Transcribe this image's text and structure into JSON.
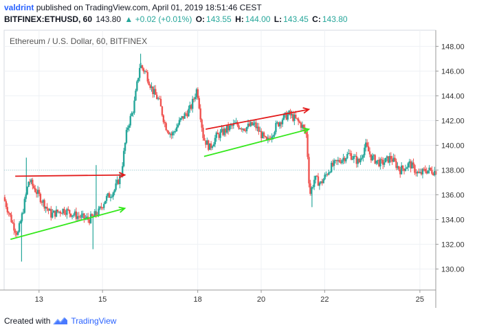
{
  "header": {
    "user": "valdrint",
    "published": "published on TradingView.com, April 01, 2019 18:51:46 CEST",
    "symbol": "BITFINEX:ETHUSD, 60",
    "last": "143.80",
    "change": "▲ +0.02 (+0.01%)",
    "o_label": "O:",
    "o_val": "143.55",
    "h_label": "H:",
    "h_val": "144.00",
    "l_label": "L:",
    "l_val": "143.45",
    "c_label": "C:",
    "c_val": "143.80"
  },
  "footer": {
    "created": "Created with",
    "brand": "TradingView"
  },
  "colors": {
    "up": "#26a69a",
    "down": "#ef5350",
    "red_line": "#e31b1b",
    "green_line": "#33e81a",
    "grid": "#eef1f5",
    "axis": "#999999"
  },
  "chart_data": {
    "type": "candlestick",
    "title": "Ethereum / U.S. Dollar, 60, BITFINEX",
    "x_ticks": [
      "13",
      "15",
      "18",
      "20",
      "22",
      "25"
    ],
    "x_tick_days": [
      13,
      15,
      18,
      20,
      22,
      25
    ],
    "y_ticks": [
      130.0,
      132.0,
      134.0,
      136.0,
      138.0,
      140.0,
      142.0,
      144.0,
      146.0,
      148.0
    ],
    "ylim": [
      128.3,
      149.3
    ],
    "xlim": [
      11.9,
      25.5
    ],
    "price_path": [
      [
        11.9,
        135.8
      ],
      [
        12.2,
        133.6
      ],
      [
        12.35,
        132.8
      ],
      [
        12.5,
        134.5
      ],
      [
        12.7,
        137.2
      ],
      [
        13.0,
        136.0
      ],
      [
        13.4,
        134.4
      ],
      [
        13.8,
        134.8
      ],
      [
        14.2,
        134.3
      ],
      [
        14.6,
        134.0
      ],
      [
        14.9,
        134.6
      ],
      [
        15.1,
        135.6
      ],
      [
        15.4,
        136.4
      ],
      [
        15.6,
        137.6
      ],
      [
        15.8,
        141.4
      ],
      [
        16.0,
        143.0
      ],
      [
        16.2,
        146.5
      ],
      [
        16.4,
        145.8
      ],
      [
        16.6,
        144.4
      ],
      [
        16.8,
        143.6
      ],
      [
        17.0,
        141.6
      ],
      [
        17.2,
        140.8
      ],
      [
        17.5,
        142.1
      ],
      [
        17.8,
        143.0
      ],
      [
        18.0,
        144.6
      ],
      [
        18.2,
        140.6
      ],
      [
        18.4,
        139.8
      ],
      [
        18.6,
        140.7
      ],
      [
        18.9,
        141.2
      ],
      [
        19.2,
        141.7
      ],
      [
        19.5,
        141.4
      ],
      [
        19.8,
        141.7
      ],
      [
        20.2,
        140.2
      ],
      [
        20.5,
        141.6
      ],
      [
        20.7,
        142.2
      ],
      [
        20.9,
        142.5
      ],
      [
        21.1,
        142.1
      ],
      [
        21.3,
        141.6
      ],
      [
        21.45,
        140.8
      ],
      [
        21.55,
        136.0
      ],
      [
        21.7,
        137.3
      ],
      [
        21.9,
        136.9
      ],
      [
        22.2,
        138.2
      ],
      [
        22.5,
        138.8
      ],
      [
        22.8,
        139.3
      ],
      [
        23.1,
        138.6
      ],
      [
        23.3,
        140.0
      ],
      [
        23.5,
        139.0
      ],
      [
        23.8,
        138.5
      ],
      [
        24.1,
        139.0
      ],
      [
        24.4,
        138.0
      ],
      [
        24.7,
        138.5
      ],
      [
        25.0,
        137.6
      ],
      [
        25.2,
        138.0
      ],
      [
        25.5,
        137.9
      ]
    ],
    "spikes": [
      [
        12.45,
        130.6
      ],
      [
        12.6,
        139.0
      ],
      [
        14.7,
        131.6
      ],
      [
        14.8,
        138.4
      ],
      [
        21.6,
        135.0
      ],
      [
        16.2,
        147.4
      ]
    ],
    "annotations": [
      {
        "color": "red",
        "x1": 12.25,
        "y1": 137.5,
        "x2": 15.7,
        "y2": 137.6
      },
      {
        "color": "green",
        "x1": 12.1,
        "y1": 132.4,
        "x2": 15.7,
        "y2": 134.9
      },
      {
        "color": "red",
        "x1": 18.25,
        "y1": 141.3,
        "x2": 21.5,
        "y2": 142.9
      },
      {
        "color": "green",
        "x1": 18.2,
        "y1": 139.1,
        "x2": 21.5,
        "y2": 141.3
      }
    ],
    "last_price": "138.00"
  }
}
